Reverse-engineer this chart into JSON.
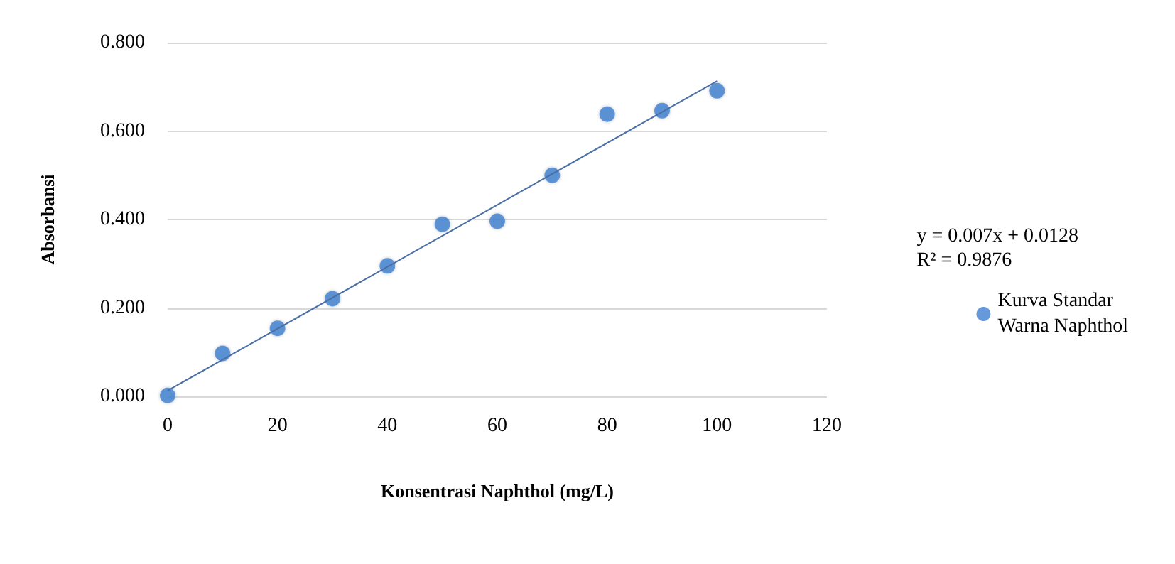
{
  "chart_data": {
    "type": "scatter",
    "xlabel": "Konsentrasi Naphthol (mg/L)",
    "ylabel": "Absorbansi",
    "x": [
      0,
      10,
      20,
      30,
      40,
      50,
      60,
      70,
      80,
      90,
      100
    ],
    "series": [
      {
        "name": "Kurva Standar Warna Naphthol",
        "color": "#3f7fcf",
        "marker": "circle",
        "values": [
          0.002,
          0.097,
          0.154,
          0.221,
          0.295,
          0.389,
          0.396,
          0.5,
          0.638,
          0.646,
          0.691
        ]
      },
      {
        "type": "line",
        "marker": "none",
        "color": "#4a6fa5",
        "x": [
          0,
          100
        ],
        "values": [
          0.013,
          0.713
        ]
      }
    ],
    "annotations": [
      "y = 0.007x + 0.0128\nR² = 0.9876"
    ],
    "xlim": [
      0,
      120
    ],
    "xticks": [
      0,
      20,
      40,
      60,
      80,
      100,
      120
    ],
    "ylim": [
      0,
      0.8
    ],
    "yticks": [
      {
        "value": 0,
        "label": "0.000"
      },
      {
        "value": 0.2,
        "label": "0.200"
      },
      {
        "value": 0.4,
        "label": "0.400"
      },
      {
        "value": 0.6,
        "label": "0.600"
      },
      {
        "value": 0.8,
        "label": "0.800"
      }
    ],
    "grid": "y",
    "legend": "right"
  }
}
